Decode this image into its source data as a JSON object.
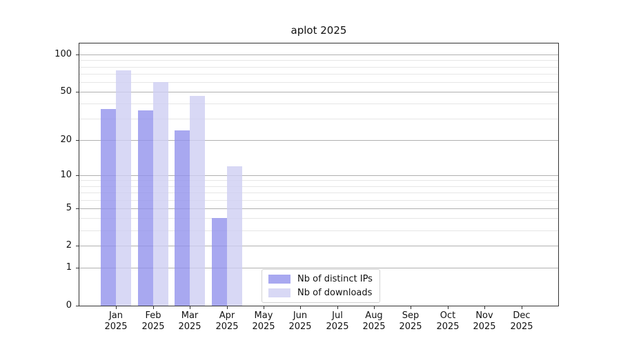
{
  "chart_data": {
    "type": "bar",
    "title": "aplot 2025",
    "categories": [
      "Jan",
      "Feb",
      "Mar",
      "Apr",
      "May",
      "Jun",
      "Jul",
      "Aug",
      "Sep",
      "Oct",
      "Nov",
      "Dec"
    ],
    "year": "2025",
    "series": [
      {
        "name": "Nb of distinct IPs",
        "color": "rgba(146,146,236,0.8)",
        "values": [
          36,
          35,
          24,
          4,
          0,
          0,
          0,
          0,
          0,
          0,
          0,
          0
        ]
      },
      {
        "name": "Nb of downloads",
        "color": "rgba(206,206,243,0.8)",
        "values": [
          75,
          60,
          46,
          12,
          0,
          0,
          0,
          0,
          0,
          0,
          0,
          0
        ]
      }
    ],
    "yscale": "log1p",
    "yticks": [
      0,
      1,
      2,
      5,
      10,
      20,
      50,
      100
    ],
    "minor_gridlines": [
      3,
      4,
      6,
      7,
      8,
      9,
      30,
      40,
      60,
      70,
      80,
      90
    ],
    "ylim": [
      0,
      123
    ],
    "xlabel": "",
    "ylabel": "",
    "grid": {
      "major_color": "#b0b0b0",
      "minor_color": "#e6e6e6"
    },
    "legend": {
      "position": "lower center"
    }
  }
}
